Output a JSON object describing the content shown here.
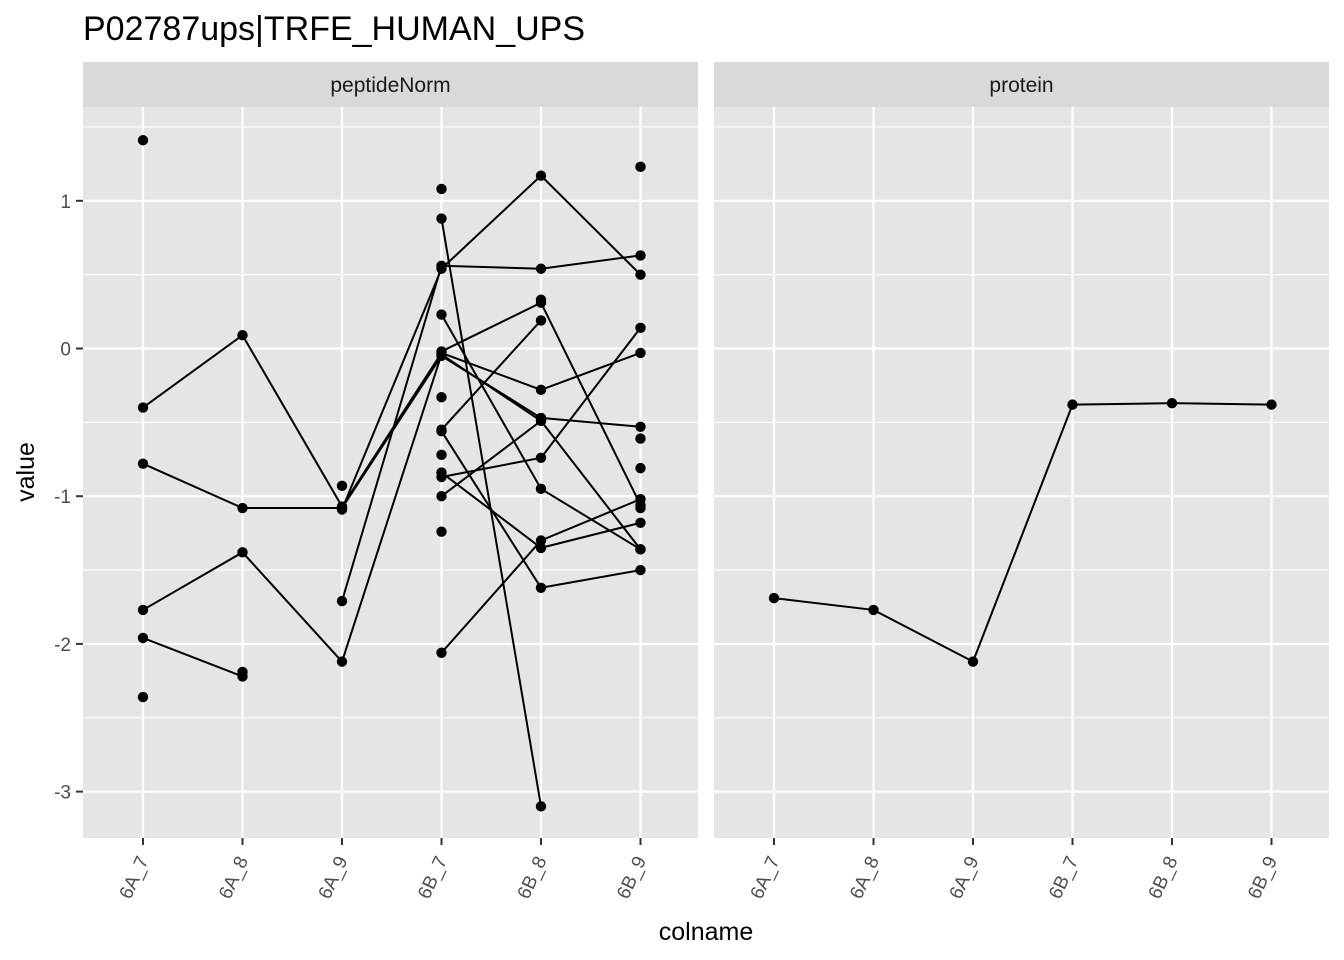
{
  "chart_data": {
    "type": "line",
    "title": "P02787ups|TRFE_HUMAN_UPS",
    "xlabel": "colname",
    "ylabel": "value",
    "categories": [
      "6A_7",
      "6A_8",
      "6A_9",
      "6B_7",
      "6B_8",
      "6B_9"
    ],
    "ylim": [
      -3.3,
      1.6
    ],
    "yticks": [
      -3,
      -2,
      -1,
      0,
      1
    ],
    "grid": true,
    "colors": {
      "panel": "#e5e5e5",
      "strip": "#d9d9d9",
      "grid": "#ffffff",
      "mark": "#000000"
    },
    "facets": [
      {
        "name": "peptideNorm",
        "series": [
          {
            "values": [
              -0.4,
              0.09,
              -1.07,
              -0.03,
              -0.28,
              -0.03
            ]
          },
          {
            "values": [
              -0.78,
              -1.08,
              -1.08,
              -0.05,
              -0.47,
              -0.53
            ]
          },
          {
            "values": [
              -1.77,
              -1.38,
              -2.12,
              -0.04,
              -0.49,
              -1.36
            ]
          },
          {
            "values": [
              -1.96,
              -2.22,
              null,
              null,
              null,
              null
            ]
          },
          {
            "values": [
              null,
              null,
              -1.71,
              0.56,
              0.54,
              0.63
            ]
          },
          {
            "values": [
              null,
              null,
              -1.09,
              0.54,
              1.17,
              0.5
            ]
          },
          {
            "values": [
              null,
              null,
              null,
              0.88,
              -3.1,
              null
            ]
          },
          {
            "values": [
              null,
              null,
              null,
              -0.55,
              0.19,
              null
            ]
          },
          {
            "values": [
              null,
              null,
              null,
              0.23,
              -0.95,
              -1.36
            ]
          },
          {
            "values": [
              null,
              null,
              null,
              -0.87,
              -0.74,
              0.14
            ]
          },
          {
            "values": [
              null,
              null,
              null,
              -1.0,
              -0.49,
              null
            ]
          },
          {
            "values": [
              null,
              null,
              null,
              -0.84,
              -1.35,
              -1.18
            ]
          },
          {
            "values": [
              null,
              null,
              null,
              -2.06,
              -1.3,
              -1.02
            ]
          },
          {
            "values": [
              null,
              null,
              null,
              -0.02,
              0.31,
              -1.06
            ]
          },
          {
            "values": [
              null,
              null,
              null,
              -0.56,
              -1.62,
              -1.5
            ]
          }
        ],
        "points": [
          [
            0,
            1.41
          ],
          [
            0,
            -2.36
          ],
          [
            1,
            -2.19
          ],
          [
            2,
            -0.93
          ],
          [
            3,
            1.08
          ],
          [
            3,
            -0.33
          ],
          [
            3,
            -0.72
          ],
          [
            3,
            -1.24
          ],
          [
            4,
            0.33
          ],
          [
            5,
            1.23
          ],
          [
            5,
            -0.61
          ],
          [
            5,
            -0.81
          ],
          [
            5,
            -1.08
          ]
        ]
      },
      {
        "name": "protein",
        "series": [
          {
            "values": [
              -1.69,
              -1.77,
              -2.12,
              -0.38,
              -0.37,
              -0.38
            ]
          }
        ],
        "points": []
      }
    ]
  }
}
